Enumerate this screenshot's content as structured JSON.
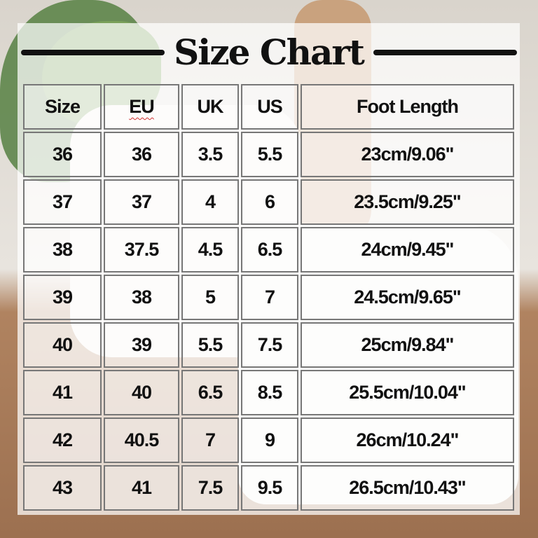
{
  "title": "Size Chart",
  "headers": [
    "Size",
    "EU",
    "UK",
    "US",
    "Foot Length"
  ],
  "rows": [
    [
      "36",
      "36",
      "3.5",
      "5.5",
      "23cm/9.06\""
    ],
    [
      "37",
      "37",
      "4",
      "6",
      "23.5cm/9.25\""
    ],
    [
      "38",
      "37.5",
      "4.5",
      "6.5",
      "24cm/9.45\""
    ],
    [
      "39",
      "38",
      "5",
      "7",
      "24.5cm/9.65\""
    ],
    [
      "40",
      "39",
      "5.5",
      "7.5",
      "25cm/9.84\""
    ],
    [
      "41",
      "40",
      "6.5",
      "8.5",
      "25.5cm/10.04\""
    ],
    [
      "42",
      "40.5",
      "7",
      "9",
      "26cm/10.24\""
    ],
    [
      "43",
      "41",
      "7.5",
      "9.5",
      "26.5cm/10.43\""
    ]
  ]
}
